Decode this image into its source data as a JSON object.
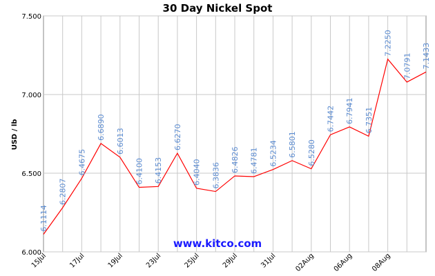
{
  "chart_data": {
    "type": "line",
    "title": "30 Day Nickel Spot",
    "y_label": "USD / lb",
    "annotation": "www.kitco.com",
    "categories": [
      "15Jul",
      null,
      "17Jul",
      null,
      "19Jul",
      null,
      "23Jul",
      null,
      "25Jul",
      null,
      "29Jul",
      null,
      "31Jul",
      null,
      "02Aug",
      null,
      "06Aug",
      null,
      "08Aug",
      null,
      null
    ],
    "series": [
      {
        "name": "Nickel",
        "color": "#ff0000",
        "values": [
          6.1114,
          6.2807,
          6.4675,
          6.689,
          6.6013,
          6.41,
          6.4153,
          6.627,
          6.404,
          6.3836,
          6.4826,
          6.4781,
          6.5234,
          6.5801,
          6.528,
          6.7442,
          6.7941,
          6.7351,
          7.225,
          7.0791,
          7.1433
        ],
        "value_labels": [
          "6.1114",
          "6.2807",
          "6.4675",
          "6.6890",
          "6.6013",
          "6.4100",
          "6.4153",
          "6.6270",
          "6.4040",
          "6.3836",
          "6.4826",
          "6.4781",
          "6.5234",
          "6.5801",
          "6.5280",
          "6.7442",
          "6.7941",
          "6.7351",
          "7.2250",
          "7.0791",
          "7.1433"
        ],
        "label_color": "#5b8bd0"
      }
    ],
    "ylim": [
      6,
      7.5
    ],
    "yticks": [
      {
        "value": 6,
        "label": "6.000"
      },
      {
        "value": 6.5,
        "label": "6.500"
      },
      {
        "value": 7,
        "label": "7.000"
      },
      {
        "value": 7.5,
        "label": "7.500"
      }
    ],
    "grid": true
  }
}
